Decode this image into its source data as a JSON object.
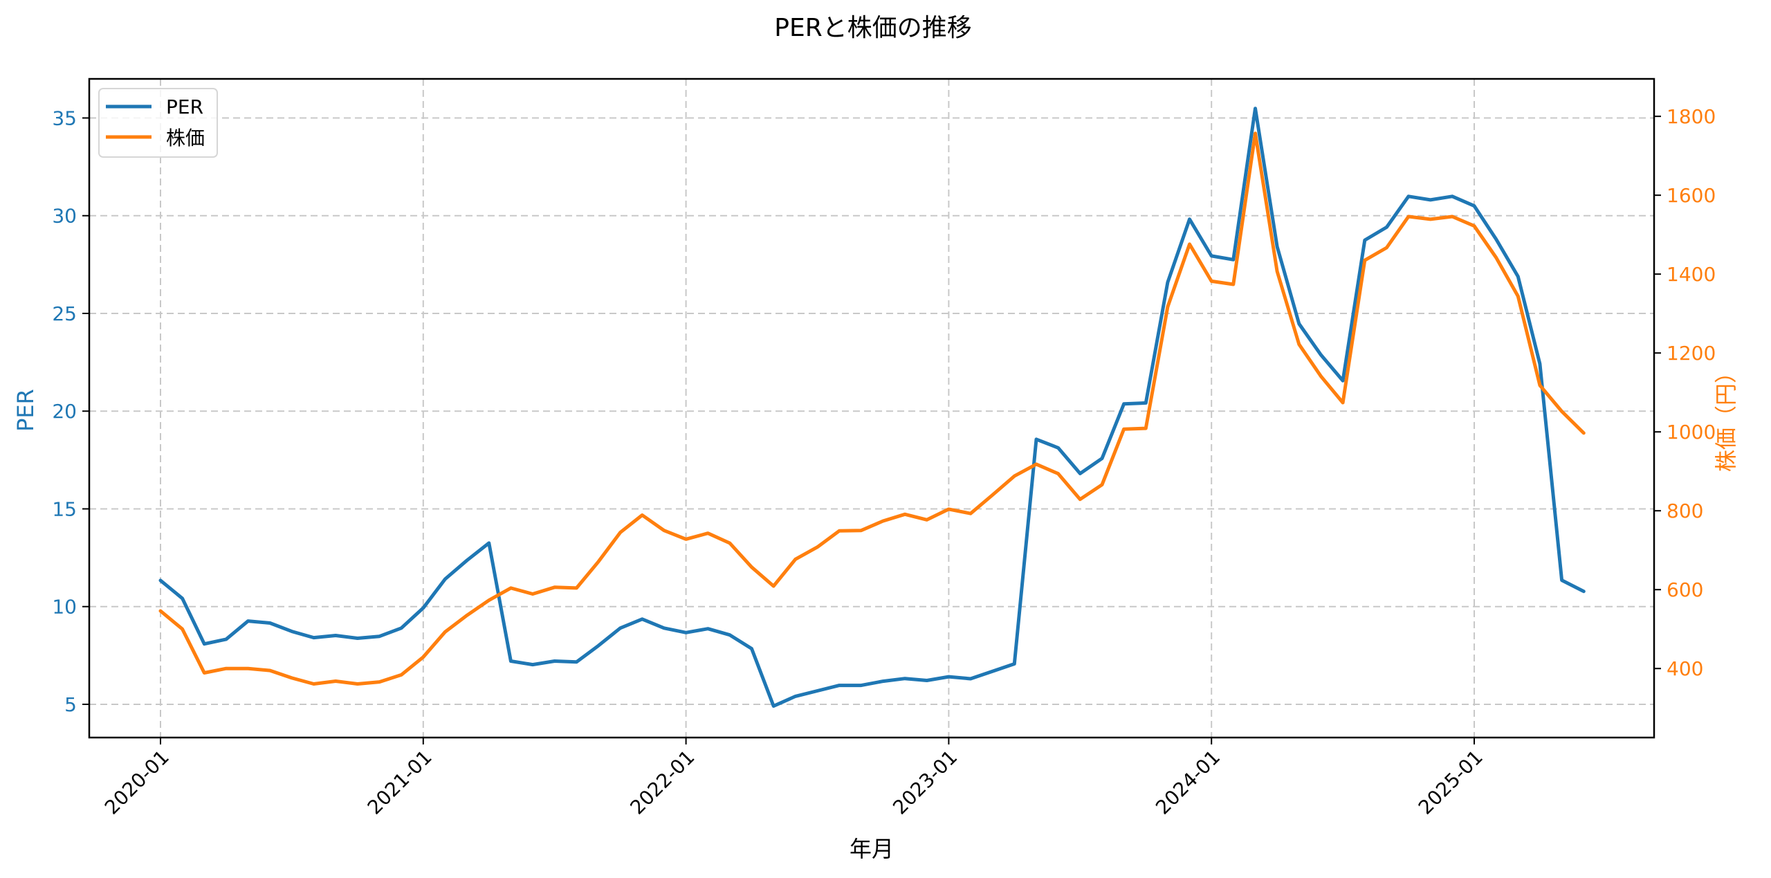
{
  "chart_data": {
    "type": "line",
    "title": "PERと株価の推移",
    "xlabel": "年月",
    "ylabel": "PER",
    "y2label": "株価（円）",
    "x_tick_labels": [
      "2020-01",
      "2021-01",
      "2022-01",
      "2023-01",
      "2024-01",
      "2025-01"
    ],
    "x_tick_rotation": 45,
    "y_ticks": [
      5,
      10,
      15,
      20,
      25,
      30,
      35
    ],
    "y2_ticks": [
      400,
      600,
      800,
      1000,
      1200,
      1400,
      1600,
      1800
    ],
    "ylim": [
      3.3,
      37.0
    ],
    "y2lim": [
      225,
      1895
    ],
    "grid": true,
    "grid_style": "dashed",
    "legend_position": "upper left",
    "colors": {
      "PER": "#1f77b4",
      "株価": "#ff7f0e"
    },
    "x": [
      "2020-01",
      "2020-02",
      "2020-03",
      "2020-04",
      "2020-05",
      "2020-06",
      "2020-07",
      "2020-08",
      "2020-09",
      "2020-10",
      "2020-11",
      "2020-12",
      "2021-01",
      "2021-02",
      "2021-03",
      "2021-04",
      "2021-05",
      "2021-06",
      "2021-07",
      "2021-08",
      "2021-09",
      "2021-10",
      "2021-11",
      "2021-12",
      "2022-01",
      "2022-02",
      "2022-03",
      "2022-04",
      "2022-05",
      "2022-06",
      "2022-07",
      "2022-08",
      "2022-09",
      "2022-10",
      "2022-11",
      "2022-12",
      "2023-01",
      "2023-02",
      "2023-03",
      "2023-04",
      "2023-05",
      "2023-06",
      "2023-07",
      "2023-08",
      "2023-09",
      "2023-10",
      "2023-11",
      "2023-12",
      "2024-01",
      "2024-02",
      "2024-03",
      "2024-04",
      "2024-05",
      "2024-06",
      "2024-07",
      "2024-08",
      "2024-09",
      "2024-10",
      "2024-11",
      "2024-12",
      "2025-01",
      "2025-02",
      "2025-03",
      "2025-04",
      "2025-05",
      "2025-06"
    ],
    "series": [
      {
        "name": "PER",
        "axis": "left",
        "values": [
          11.34,
          10.42,
          8.09,
          8.33,
          9.26,
          9.16,
          8.73,
          8.41,
          8.52,
          8.38,
          8.48,
          8.9,
          9.93,
          11.41,
          12.37,
          13.25,
          7.21,
          7.03,
          7.21,
          7.17,
          8.0,
          8.9,
          9.36,
          8.9,
          8.67,
          8.87,
          8.55,
          7.85,
          4.91,
          5.41,
          5.69,
          5.97,
          5.97,
          6.18,
          6.32,
          6.22,
          6.41,
          6.31,
          6.69,
          7.07,
          18.56,
          18.12,
          16.81,
          17.58,
          20.37,
          20.42,
          26.59,
          29.82,
          27.94,
          27.75,
          35.49,
          28.42,
          24.47,
          22.88,
          21.56,
          28.75,
          29.41,
          30.99,
          30.81,
          30.99,
          30.5,
          28.8,
          26.89,
          22.42,
          11.35,
          10.78
        ]
      },
      {
        "name": "株価",
        "axis": "right",
        "values": [
          546,
          500,
          389,
          400,
          400,
          395,
          376,
          361,
          368,
          361,
          366,
          384,
          429,
          493,
          535,
          573,
          604,
          589,
          606,
          604,
          671,
          745,
          789,
          750,
          728,
          743,
          718,
          657,
          609,
          677,
          708,
          749,
          750,
          774,
          791,
          777,
          804,
          793,
          840,
          888,
          918,
          894,
          829,
          866,
          1007,
          1009,
          1317,
          1476,
          1382,
          1374,
          1757,
          1407,
          1222,
          1141,
          1074,
          1435,
          1467,
          1546,
          1539,
          1546,
          1522,
          1442,
          1344,
          1118,
          1052,
          997
        ]
      }
    ]
  }
}
